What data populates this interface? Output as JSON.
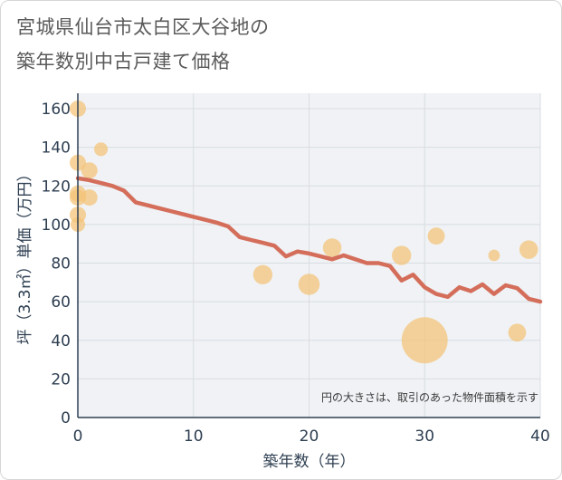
{
  "title_line1": "宮城県仙台市太白区大谷地の",
  "title_line2": "築年数別中古戸建て価格",
  "chart_data": {
    "type": "scatter",
    "xlabel": "築年数（年）",
    "ylabel": "坪（3.3㎡）単価（万円）",
    "xlim": [
      0,
      40
    ],
    "ylim": [
      0,
      168
    ],
    "xticks": [
      0,
      10,
      20,
      30,
      40
    ],
    "yticks": [
      0,
      20,
      40,
      60,
      80,
      100,
      120,
      140,
      160
    ],
    "grid": true,
    "annotation": "円の大きさは、取引のあった物件面積を示す",
    "colors": {
      "trend": "#d46e5b",
      "points": "#f4c47a",
      "axis": "#2e3f52",
      "grid": "#d8dde2",
      "plot_bg": "#f0f2f5"
    },
    "series": [
      {
        "type": "bubble",
        "points": [
          {
            "x": 0,
            "y": 160,
            "size": 1.0
          },
          {
            "x": 0,
            "y": 132,
            "size": 1.0
          },
          {
            "x": 0,
            "y": 116,
            "size": 1.0
          },
          {
            "x": 0,
            "y": 114,
            "size": 1.0
          },
          {
            "x": 0,
            "y": 105,
            "size": 1.0
          },
          {
            "x": 0,
            "y": 100,
            "size": 0.8
          },
          {
            "x": 1,
            "y": 128,
            "size": 1.0
          },
          {
            "x": 1,
            "y": 114,
            "size": 1.0
          },
          {
            "x": 2,
            "y": 139,
            "size": 0.7
          },
          {
            "x": 16,
            "y": 74,
            "size": 1.4
          },
          {
            "x": 20,
            "y": 69,
            "size": 1.7
          },
          {
            "x": 22,
            "y": 88,
            "size": 1.3
          },
          {
            "x": 28,
            "y": 84,
            "size": 1.4
          },
          {
            "x": 30,
            "y": 40,
            "size": 8.0
          },
          {
            "x": 31,
            "y": 94,
            "size": 1.1
          },
          {
            "x": 36,
            "y": 84,
            "size": 0.5
          },
          {
            "x": 38,
            "y": 44,
            "size": 1.2
          },
          {
            "x": 39,
            "y": 87,
            "size": 1.3
          }
        ]
      },
      {
        "type": "line",
        "x": [
          0,
          1,
          2,
          3,
          4,
          5,
          6,
          7,
          8,
          9,
          10,
          11,
          12,
          13,
          14,
          15,
          16,
          17,
          18,
          19,
          20,
          21,
          22,
          23,
          24,
          25,
          26,
          27,
          28,
          29,
          30,
          31,
          32,
          33,
          34,
          35,
          36,
          37,
          38,
          39,
          40
        ],
        "y": [
          124,
          123,
          121.5,
          120,
          117.5,
          111.5,
          110,
          108.5,
          107,
          105.5,
          104,
          102.5,
          101,
          99,
          93.5,
          92,
          90.5,
          89,
          83.5,
          86,
          85,
          83.5,
          82,
          84,
          82,
          80,
          80,
          78.5,
          71,
          74,
          67.5,
          64,
          62.5,
          67.5,
          65.5,
          69,
          64,
          68.5,
          67,
          61.5,
          60
        ]
      }
    ]
  }
}
